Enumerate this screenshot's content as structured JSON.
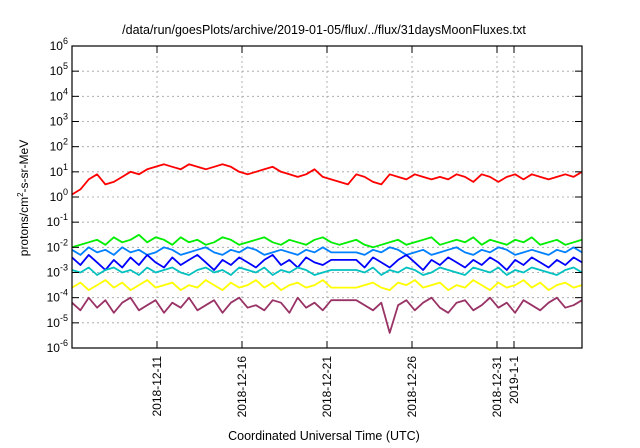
{
  "chart_data": {
    "type": "line",
    "title": "/data/run/goesPlots/archive/2019-01-05/flux/../flux/31daysMoonFluxes.txt",
    "xlabel": "Coordinated Universal Time (UTC)",
    "ylabel_parts": [
      "protons/cm",
      "2",
      "-s-sr-MeV"
    ],
    "y_scale": "log",
    "ylim_exp": [
      -6,
      6
    ],
    "y_ticks": [
      {
        "base": "10",
        "exp": "-6"
      },
      {
        "base": "10",
        "exp": "-5"
      },
      {
        "base": "10",
        "exp": "-4"
      },
      {
        "base": "10",
        "exp": "-3"
      },
      {
        "base": "10",
        "exp": "-2"
      },
      {
        "base": "10",
        "exp": "-1"
      },
      {
        "base": "10",
        "exp": "0"
      },
      {
        "base": "10",
        "exp": "1"
      },
      {
        "base": "10",
        "exp": "2"
      },
      {
        "base": "10",
        "exp": "3"
      },
      {
        "base": "10",
        "exp": "4"
      },
      {
        "base": "10",
        "exp": "5"
      },
      {
        "base": "10",
        "exp": "6"
      }
    ],
    "x_range": [
      "2018-12-06",
      "2019-01-05"
    ],
    "x_ticks": [
      "2018-12-11",
      "2018-12-16",
      "2018-12-21",
      "2018-12-26",
      "2018-12-31",
      "2019-1-1"
    ],
    "x_tick_dates": [
      "2018-12-11",
      "2018-12-16",
      "2018-12-21",
      "2018-12-26",
      "2018-12-31",
      "2019-01-01"
    ],
    "grid": true,
    "series": [
      {
        "color": "#ff0000",
        "log10_values": [
          0.1,
          0.3,
          0.7,
          0.9,
          0.5,
          0.6,
          0.8,
          1.0,
          0.9,
          1.1,
          1.2,
          1.3,
          1.2,
          1.1,
          1.3,
          1.2,
          1.1,
          1.2,
          1.3,
          1.2,
          1.0,
          0.9,
          1.0,
          1.1,
          1.2,
          1.0,
          0.9,
          0.8,
          0.9,
          1.1,
          0.8,
          0.7,
          0.6,
          0.5,
          0.9,
          0.8,
          0.6,
          0.5,
          0.9,
          0.8,
          0.7,
          0.9,
          0.8,
          0.7,
          0.8,
          0.7,
          0.9,
          0.8,
          0.6,
          0.9,
          0.8,
          0.6,
          0.8,
          0.9,
          0.7,
          0.9,
          0.8,
          0.7,
          0.8,
          0.9,
          0.8,
          1.0
        ]
      },
      {
        "color": "#00ee00",
        "log10_values": [
          -2.0,
          -1.9,
          -1.8,
          -1.7,
          -1.9,
          -1.6,
          -1.8,
          -1.7,
          -1.5,
          -1.8,
          -1.6,
          -1.7,
          -1.9,
          -1.6,
          -1.8,
          -1.7,
          -1.9,
          -1.8,
          -1.6,
          -1.7,
          -1.9,
          -1.8,
          -1.7,
          -1.6,
          -1.8,
          -1.9,
          -1.7,
          -1.8,
          -1.9,
          -1.7,
          -1.6,
          -1.8,
          -1.9,
          -1.8,
          -1.7,
          -1.9,
          -2.0,
          -1.9,
          -1.8,
          -1.7,
          -1.9,
          -1.8,
          -1.7,
          -1.6,
          -1.9,
          -1.8,
          -1.7,
          -1.8,
          -1.6,
          -1.9,
          -1.7,
          -1.8,
          -1.9,
          -1.7,
          -1.8,
          -1.6,
          -1.9,
          -1.8,
          -1.7,
          -1.9,
          -1.8,
          -1.7
        ]
      },
      {
        "color": "#0080ff",
        "log10_values": [
          -2.1,
          -2.3,
          -2.0,
          -2.2,
          -2.1,
          -2.3,
          -2.0,
          -2.2,
          -2.1,
          -2.3,
          -2.2,
          -2.0,
          -2.1,
          -2.3,
          -2.2,
          -2.1,
          -2.0,
          -2.2,
          -2.3,
          -2.1,
          -2.2,
          -2.0,
          -2.1,
          -2.3,
          -2.2,
          -2.1,
          -2.2,
          -2.3,
          -2.1,
          -2.2,
          -2.0,
          -2.2,
          -2.2,
          -2.2,
          -2.2,
          -2.3,
          -2.1,
          -2.2,
          -2.0,
          -2.1,
          -2.3,
          -2.2,
          -2.1,
          -2.3,
          -2.2,
          -2.1,
          -2.0,
          -2.2,
          -2.3,
          -2.1,
          -2.2,
          -2.0,
          -2.1,
          -2.3,
          -2.2,
          -2.1,
          -2.2,
          -2.3,
          -2.1,
          -2.2,
          -2.0,
          -2.2
        ]
      },
      {
        "color": "#0000ff",
        "log10_values": [
          -2.4,
          -2.7,
          -2.3,
          -2.6,
          -2.9,
          -2.5,
          -2.8,
          -2.4,
          -2.7,
          -2.3,
          -2.6,
          -2.8,
          -2.4,
          -2.7,
          -2.5,
          -2.3,
          -2.6,
          -2.9,
          -2.5,
          -2.7,
          -2.4,
          -2.6,
          -2.8,
          -2.5,
          -2.3,
          -2.7,
          -2.5,
          -2.8,
          -2.4,
          -2.6,
          -2.7,
          -2.5,
          -2.5,
          -2.5,
          -2.5,
          -2.8,
          -2.4,
          -2.6,
          -2.8,
          -2.5,
          -2.3,
          -2.6,
          -2.9,
          -2.5,
          -2.7,
          -2.4,
          -2.6,
          -2.8,
          -2.5,
          -2.7,
          -2.4,
          -2.6,
          -2.9,
          -2.5,
          -2.7,
          -2.4,
          -2.6,
          -2.8,
          -2.5,
          -2.7,
          -2.4,
          -2.6
        ]
      },
      {
        "color": "#00c0c0",
        "log10_values": [
          -2.9,
          -3.0,
          -2.8,
          -3.1,
          -2.9,
          -2.8,
          -3.0,
          -2.9,
          -3.1,
          -2.8,
          -3.0,
          -2.9,
          -2.8,
          -3.0,
          -3.1,
          -2.9,
          -2.8,
          -3.0,
          -2.9,
          -3.1,
          -2.8,
          -2.9,
          -3.0,
          -2.8,
          -3.1,
          -2.9,
          -3.0,
          -2.8,
          -2.9,
          -3.1,
          -3.0,
          -2.9,
          -2.9,
          -2.9,
          -2.9,
          -3.0,
          -2.8,
          -3.1,
          -2.9,
          -3.0,
          -2.8,
          -2.9,
          -3.1,
          -3.0,
          -2.8,
          -2.9,
          -3.0,
          -3.1,
          -2.8,
          -2.9,
          -3.0,
          -2.8,
          -3.1,
          -2.9,
          -3.0,
          -2.8,
          -2.9,
          -3.0,
          -3.1,
          -2.9,
          -2.8,
          -3.0
        ]
      },
      {
        "color": "#ffff00",
        "log10_values": [
          -3.6,
          -3.4,
          -3.7,
          -3.5,
          -3.3,
          -3.6,
          -3.4,
          -3.7,
          -3.5,
          -3.3,
          -3.6,
          -3.5,
          -3.4,
          -3.7,
          -3.5,
          -3.6,
          -3.3,
          -3.5,
          -3.7,
          -3.4,
          -3.6,
          -3.5,
          -3.3,
          -3.6,
          -3.4,
          -3.7,
          -3.5,
          -3.4,
          -3.6,
          -3.5,
          -3.3,
          -3.6,
          -3.6,
          -3.6,
          -3.6,
          -3.5,
          -3.4,
          -3.6,
          -3.7,
          -3.4,
          -3.5,
          -3.3,
          -3.6,
          -3.5,
          -3.4,
          -3.7,
          -3.5,
          -3.6,
          -3.3,
          -3.5,
          -3.7,
          -3.4,
          -3.6,
          -3.5,
          -3.3,
          -3.6,
          -3.4,
          -3.7,
          -3.5,
          -3.4,
          -3.6,
          -3.5
        ]
      },
      {
        "color": "#993366",
        "log10_values": [
          -4.2,
          -4.5,
          -4.0,
          -4.4,
          -4.1,
          -4.6,
          -4.2,
          -4.0,
          -4.5,
          -4.3,
          -4.1,
          -4.6,
          -4.2,
          -4.4,
          -4.0,
          -4.5,
          -4.3,
          -4.1,
          -4.6,
          -4.2,
          -4.0,
          -4.4,
          -4.3,
          -4.5,
          -4.1,
          -4.2,
          -4.6,
          -4.0,
          -4.4,
          -4.2,
          -4.5,
          -4.1,
          -4.1,
          -4.1,
          -4.1,
          -4.3,
          -4.5,
          -4.2,
          -5.4,
          -4.3,
          -4.1,
          -4.5,
          -4.2,
          -4.0,
          -4.4,
          -4.6,
          -4.2,
          -4.1,
          -4.5,
          -4.3,
          -4.0,
          -4.4,
          -4.2,
          -4.6,
          -4.1,
          -4.3,
          -4.5,
          -4.2,
          -4.0,
          -4.4,
          -4.3,
          -4.1
        ]
      }
    ]
  }
}
